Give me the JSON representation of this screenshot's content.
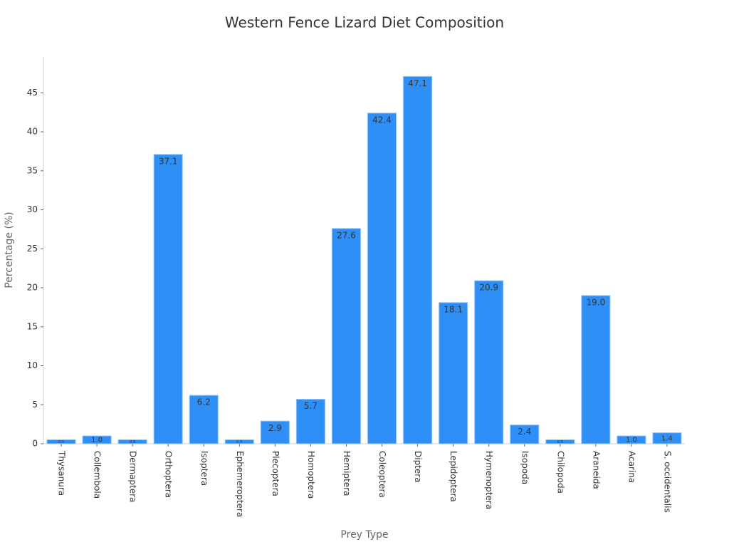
{
  "chart_data": {
    "type": "bar",
    "title": "Western Fence Lizard Diet Composition",
    "x_label": "Prey Type",
    "y_label": "Percentage (%)",
    "categories": [
      "Thysanura",
      "Collembola",
      "Dermaptera",
      "Orthoptera",
      "Isoptera",
      "Ephemeroptera",
      "Plecoptera",
      "Homoptera",
      "Hemiptera",
      "Coleoptera",
      "Diptera",
      "Lepidoptera",
      "Hymenoptera",
      "Isopoda",
      "Chilopoda",
      "Araneida",
      "Acarina",
      "S. occidentalis"
    ],
    "values": [
      0.5,
      1.0,
      0.5,
      37.1,
      6.2,
      0.5,
      2.9,
      5.7,
      27.6,
      42.4,
      47.1,
      18.1,
      20.9,
      2.4,
      0.5,
      19.0,
      1.0,
      1.4
    ],
    "value_labels": [
      "0.5",
      "1.0",
      "0.5",
      "37.1",
      "6.2",
      "0.5",
      "2.9",
      "5.7",
      "27.6",
      "42.4",
      "47.1",
      "18.1",
      "20.9",
      "2.4",
      "0.5",
      "19.0",
      "1.0",
      "1.4"
    ],
    "color": "#2e90f7",
    "ylim": [
      0,
      49.6
    ],
    "yticks": [
      0,
      5,
      10,
      15,
      20,
      25,
      30,
      35,
      40,
      45
    ],
    "grid": false
  }
}
